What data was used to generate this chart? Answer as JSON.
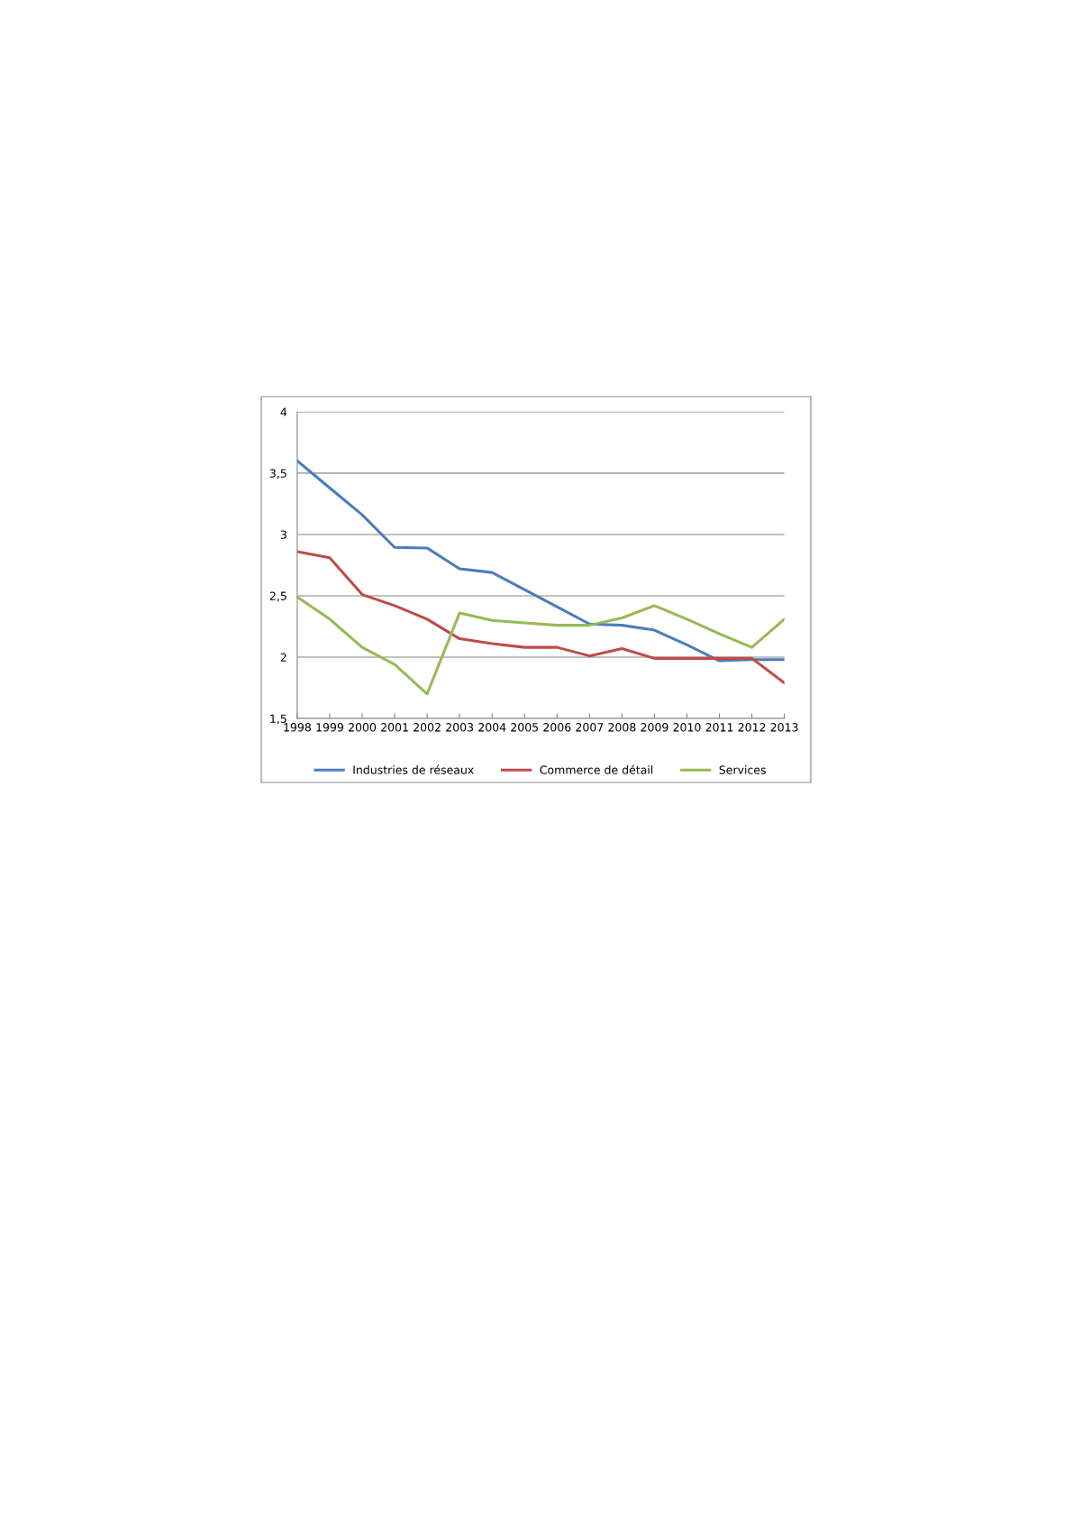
{
  "chart_data": {
    "type": "line",
    "categories": [
      "1998",
      "1999",
      "2000",
      "2001",
      "2002",
      "2003",
      "2004",
      "2005",
      "2006",
      "2007",
      "2008",
      "2009",
      "2010",
      "2011",
      "2012",
      "2013"
    ],
    "series": [
      {
        "name": "Industries de réseaux",
        "color": "#4a7ebb",
        "values": [
          3.6,
          3.38,
          3.16,
          2.895,
          2.89,
          2.72,
          2.69,
          2.55,
          2.41,
          2.27,
          2.26,
          2.22,
          2.1,
          1.97,
          1.98,
          1.98
        ]
      },
      {
        "name": "Commerce de détail",
        "color": "#be4b48",
        "values": [
          2.86,
          2.81,
          2.51,
          2.42,
          2.31,
          2.15,
          2.11,
          2.08,
          2.08,
          2.01,
          2.07,
          1.99,
          1.99,
          1.99,
          1.99,
          1.79
        ]
      },
      {
        "name": "Services",
        "color": "#98b954",
        "values": [
          2.49,
          2.31,
          2.08,
          1.94,
          1.7,
          2.36,
          2.3,
          2.28,
          2.26,
          2.26,
          2.32,
          2.42,
          2.31,
          2.19,
          2.08,
          2.31
        ]
      }
    ],
    "ylim": [
      1.5,
      4
    ],
    "yticks": [
      {
        "value": 1.5,
        "label": "1,5"
      },
      2,
      {
        "value": 2.5,
        "label": "2,5"
      },
      3,
      {
        "value": 3.5,
        "label": "3,5"
      },
      4
    ],
    "grid": "y",
    "legend": "bottom",
    "marker": "none",
    "line_style": "solid"
  }
}
